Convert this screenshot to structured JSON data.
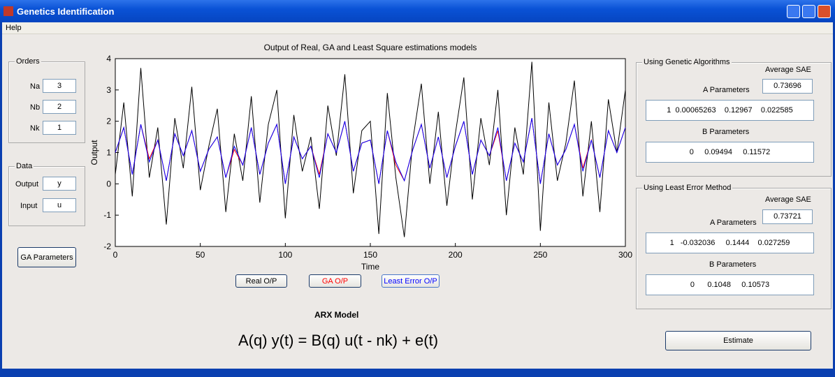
{
  "window": {
    "title": "Genetics Identification"
  },
  "menu": {
    "items": [
      "Help"
    ]
  },
  "orders": {
    "title": "Orders",
    "fields": [
      {
        "label": "Na",
        "value": "3"
      },
      {
        "label": "Nb",
        "value": "2"
      },
      {
        "label": "Nk",
        "value": "1"
      }
    ]
  },
  "data_panel": {
    "title": "Data",
    "fields": [
      {
        "label": "Output",
        "value": "y"
      },
      {
        "label": "Input",
        "value": "u"
      }
    ]
  },
  "buttons": {
    "ga_parameters": "GA Parameters",
    "estimate": "Estimate"
  },
  "genetic": {
    "title": "Using Genetic Algorithms",
    "sae_label": "Average SAE",
    "sae": "0.73696",
    "a_label": "A Parameters",
    "a": "1  0.00065263    0.12967    0.022585",
    "b_label": "B Parameters",
    "b": "0     0.09494     0.11572"
  },
  "least": {
    "title": "Using Least Error Method",
    "sae_label": "Average SAE",
    "sae": "0.73721",
    "a_label": "A Parameters",
    "a": "1   -0.032036     0.1444    0.027259",
    "b_label": "B Parameters",
    "b": "0      0.1048     0.10573"
  },
  "model": {
    "title": "ARX Model",
    "equation": "A(q) y(t) = B(q) u(t - nk) + e(t)"
  },
  "chart_data": {
    "type": "line",
    "title": "Output of Real, GA and Least Square estimations models",
    "x_label": "Time",
    "y_label": "Output",
    "x": [
      0,
      5,
      10,
      15,
      20,
      25,
      30,
      35,
      40,
      45,
      50,
      55,
      60,
      65,
      70,
      75,
      80,
      85,
      90,
      95,
      100,
      105,
      110,
      115,
      120,
      125,
      130,
      135,
      140,
      145,
      150,
      155,
      160,
      165,
      170,
      175,
      180,
      185,
      190,
      195,
      200,
      205,
      210,
      215,
      220,
      225,
      230,
      235,
      240,
      245,
      250,
      255,
      260,
      265,
      270,
      275,
      280,
      285,
      290,
      295,
      300
    ],
    "series": [
      {
        "name": "Real O/P",
        "color": "#000000",
        "values": [
          0.3,
          2.6,
          -0.4,
          3.7,
          0.2,
          1.8,
          -1.3,
          2.1,
          0.5,
          3.1,
          -0.2,
          1.2,
          2.4,
          -0.9,
          1.6,
          0.1,
          2.8,
          -0.6,
          1.9,
          3.0,
          -1.1,
          2.2,
          0.4,
          1.5,
          -0.8,
          2.5,
          0.9,
          3.5,
          -0.3,
          1.7,
          2.0,
          -1.6,
          2.9,
          0.2,
          -1.7,
          1.4,
          3.2,
          0.0,
          2.3,
          -0.7,
          1.6,
          3.4,
          -0.5,
          2.1,
          0.6,
          3.0,
          -1.0,
          1.8,
          0.3,
          3.9,
          -1.5,
          2.6,
          0.1,
          1.3,
          3.3,
          -0.4,
          2.0,
          -0.9,
          2.7,
          1.0,
          3.0
        ]
      },
      {
        "name": "GA O/P",
        "color": "#ff0000",
        "values": [
          1.0,
          1.8,
          0.3,
          1.9,
          0.8,
          1.4,
          0.1,
          1.6,
          0.9,
          1.7,
          0.4,
          1.1,
          1.5,
          0.2,
          1.1,
          0.6,
          1.8,
          0.3,
          1.3,
          1.9,
          0.0,
          1.5,
          0.8,
          1.2,
          0.3,
          1.6,
          1.0,
          2.0,
          0.4,
          1.3,
          1.4,
          0.0,
          1.7,
          0.6,
          0.1,
          1.1,
          1.9,
          0.5,
          1.5,
          0.2,
          1.2,
          2.0,
          0.3,
          1.4,
          0.9,
          1.7,
          0.1,
          1.3,
          0.7,
          2.1,
          0.0,
          1.6,
          0.6,
          1.1,
          1.9,
          0.5,
          1.4,
          0.2,
          1.7,
          1.0,
          1.8
        ]
      },
      {
        "name": "Least Error O/P",
        "color": "#0000ff",
        "values": [
          1.0,
          1.8,
          0.3,
          1.9,
          0.7,
          1.4,
          0.1,
          1.6,
          0.9,
          1.7,
          0.4,
          1.1,
          1.5,
          0.2,
          1.2,
          0.6,
          1.8,
          0.3,
          1.3,
          1.9,
          0.0,
          1.5,
          0.8,
          1.2,
          0.2,
          1.6,
          1.0,
          2.0,
          0.4,
          1.3,
          1.4,
          0.0,
          1.7,
          0.7,
          0.1,
          1.1,
          1.9,
          0.5,
          1.5,
          0.2,
          1.2,
          2.0,
          0.3,
          1.4,
          0.9,
          1.8,
          0.1,
          1.3,
          0.7,
          2.1,
          0.0,
          1.6,
          0.6,
          1.1,
          1.9,
          0.4,
          1.4,
          0.2,
          1.7,
          1.0,
          1.8
        ]
      }
    ],
    "xlim": [
      0,
      300
    ],
    "xticks": [
      0,
      50,
      100,
      150,
      200,
      250,
      300
    ],
    "ylim": [
      -2,
      4
    ],
    "yticks": [
      -2,
      -1,
      0,
      1,
      2,
      3,
      4
    ],
    "grid": false
  }
}
